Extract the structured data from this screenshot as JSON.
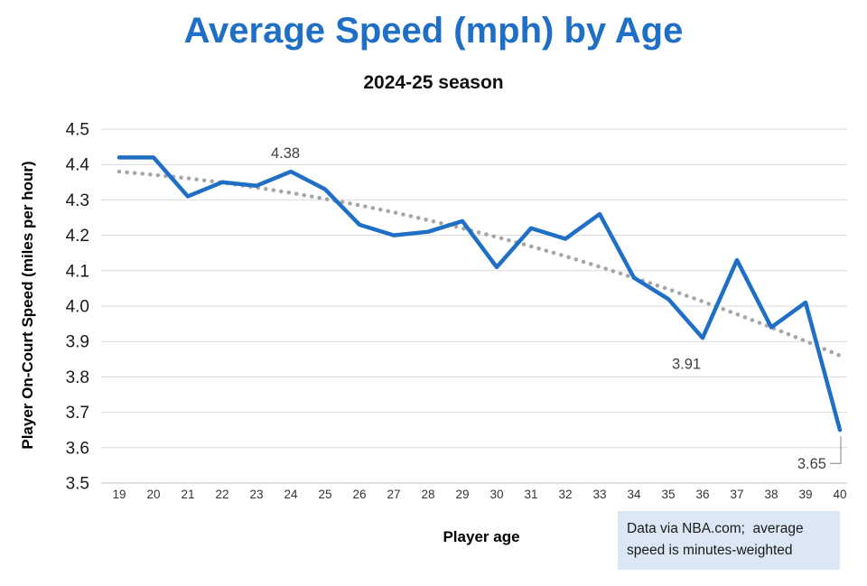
{
  "header": {
    "title": "Average Speed (mph) by Age",
    "subtitle": "2024-25 season"
  },
  "caption": {
    "text": "Data via NBA.com;  average speed is minutes-weighted"
  },
  "colors": {
    "title_blue": "#1e6fc5",
    "line_blue": "#1e6fc5",
    "trend_gray": "#a6a6a6",
    "gridline": "#d9d9d9",
    "axis_line": "#bfbfbf",
    "tick_label": "#333333",
    "annotation": "#404040",
    "caption_bg": "#dbe7f4"
  },
  "chart_data": {
    "type": "line",
    "title": "Average Speed (mph) by Age",
    "subtitle": "2024-25 season",
    "xlabel": "Player age",
    "ylabel": "Player On-Court Speed (miles per hour)",
    "x": [
      19,
      20,
      21,
      22,
      23,
      24,
      25,
      26,
      27,
      28,
      29,
      30,
      31,
      32,
      33,
      34,
      35,
      36,
      37,
      38,
      39,
      40
    ],
    "series": [
      {
        "name": "Player on-court speed (mph)",
        "style": "solid",
        "values": [
          4.42,
          4.42,
          4.31,
          4.35,
          4.34,
          4.38,
          4.33,
          4.23,
          4.2,
          4.21,
          4.24,
          4.11,
          4.22,
          4.19,
          4.26,
          4.08,
          4.02,
          3.91,
          4.13,
          3.94,
          4.01,
          3.65
        ]
      },
      {
        "name": "Trendline",
        "style": "dotted",
        "values": [
          4.38,
          4.371,
          4.361,
          4.349,
          4.335,
          4.32,
          4.303,
          4.285,
          4.265,
          4.243,
          4.22,
          4.195,
          4.169,
          4.141,
          4.111,
          4.08,
          4.048,
          4.013,
          3.977,
          3.94,
          3.901,
          3.86
        ]
      }
    ],
    "ylim": [
      3.5,
      4.5
    ],
    "ytick_step": 0.1,
    "grid": "horizontal",
    "legend": "none",
    "annotations": [
      {
        "age": 24,
        "text": "4.38"
      },
      {
        "age": 36,
        "text": "3.91"
      },
      {
        "age": 40,
        "text": "3.65"
      }
    ]
  }
}
